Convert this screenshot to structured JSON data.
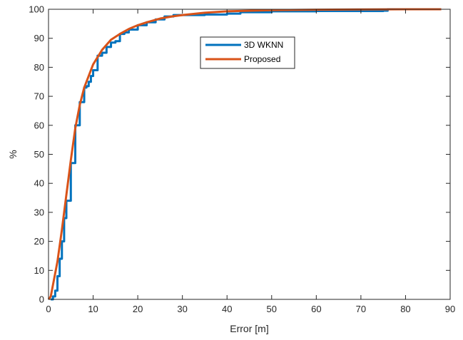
{
  "chart_data": {
    "type": "line",
    "xlabel": "Error [m]",
    "ylabel": "%",
    "xlim": [
      0,
      90
    ],
    "ylim": [
      0,
      100
    ],
    "xticks": [
      0,
      10,
      20,
      30,
      40,
      50,
      60,
      70,
      80,
      90
    ],
    "yticks": [
      0,
      10,
      20,
      30,
      40,
      50,
      60,
      70,
      80,
      90,
      100
    ],
    "grid": false,
    "legend_position": "top-center",
    "series": [
      {
        "name": "3D WKNN",
        "color": "#0072BD",
        "step": true,
        "x": [
          0.5,
          1.0,
          1.5,
          2.0,
          2.5,
          3.0,
          3.5,
          4.0,
          5.0,
          6.0,
          7.0,
          8.0,
          8.5,
          9.0,
          9.5,
          10.0,
          11.0,
          12.0,
          13.0,
          14.0,
          15.0,
          16.0,
          17.0,
          18.0,
          20.0,
          22.0,
          24.0,
          26.0,
          28.0,
          30.0,
          35.0,
          40.0,
          43.0,
          50.0,
          60.0,
          75.0,
          76.0,
          88.0
        ],
        "y": [
          0,
          1,
          3,
          8,
          14,
          20,
          28,
          34,
          47,
          60,
          68,
          73,
          73.5,
          75,
          77,
          79,
          84,
          85,
          87,
          88.5,
          89,
          91.5,
          92,
          93,
          94.5,
          95.5,
          96.5,
          97.5,
          98,
          98,
          98.2,
          98.5,
          99,
          99.3,
          99.4,
          99.5,
          100,
          100
        ]
      },
      {
        "name": "Proposed",
        "color": "#D95319",
        "step": false,
        "x": [
          0,
          0.5,
          1,
          2,
          3,
          4,
          5,
          6,
          7,
          8,
          9,
          10,
          12,
          14,
          16,
          18,
          20,
          22,
          25,
          28,
          30,
          35,
          40,
          50,
          60,
          70,
          80,
          88
        ],
        "y": [
          0,
          1,
          5,
          13,
          24,
          36,
          48,
          59,
          67,
          73,
          77,
          81,
          86,
          89.5,
          91.5,
          93.2,
          94.5,
          95.5,
          96.8,
          97.6,
          98,
          98.8,
          99.3,
          99.7,
          99.85,
          99.95,
          100,
          100
        ]
      }
    ]
  }
}
